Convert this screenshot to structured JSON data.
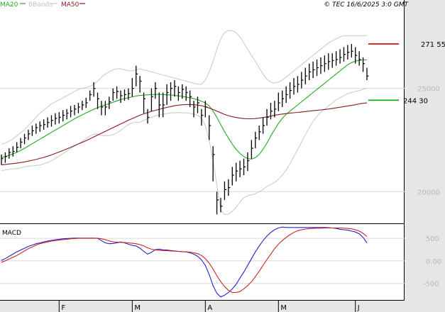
{
  "legend": {
    "ma20": {
      "label": "MA20",
      "color": "#22aa22"
    },
    "bbands": {
      "label": "BBands",
      "color": "#c8c8c8"
    },
    "ma50": {
      "label": "MA50",
      "color": "#8b1a1a"
    }
  },
  "credit": "© TEC 16/6/2025 3:0 GMT",
  "macd_label": "MACD",
  "colors": {
    "price": "#000000",
    "ma20": "#22aa22",
    "ma50": "#8b1a1a",
    "bbands": "#c8c8c8",
    "macd": "#2222cc",
    "signal": "#cc2222",
    "resistance": "#cc0000",
    "support": "#00aa00",
    "grid": "#d8d8d8",
    "axis_panel": "#e6e6e6"
  },
  "chart_data": [
    {
      "type": "ohlc",
      "panel": "price",
      "ylim": [
        18500,
        28800
      ],
      "y_ticks": [
        {
          "value": 25000,
          "label": "25000"
        },
        {
          "value": 20000,
          "label": "20000"
        }
      ],
      "x_ticks": [
        {
          "index": 15,
          "label": "F"
        },
        {
          "index": 34,
          "label": "M"
        },
        {
          "index": 53,
          "label": "A"
        },
        {
          "index": 72,
          "label": "M"
        },
        {
          "index": 92,
          "label": "J"
        }
      ],
      "levels": [
        {
          "name": "resistance",
          "value": 27155,
          "label": "271 55"
        },
        {
          "name": "support",
          "value": 24430,
          "label": "244 30"
        }
      ],
      "close": [
        21600,
        21700,
        21900,
        21950,
        22150,
        22400,
        22600,
        22800,
        22950,
        23100,
        23200,
        23250,
        23350,
        23450,
        23550,
        23600,
        23700,
        23800,
        23900,
        24000,
        24100,
        24200,
        24300,
        24700,
        25000,
        24500,
        24100,
        24100,
        24350,
        24800,
        24850,
        24650,
        24700,
        24750,
        25000,
        25700,
        25350,
        24500,
        23600,
        24600,
        25000,
        24200,
        24200,
        24800,
        25000,
        25100,
        24800,
        24950,
        24800,
        24600,
        24100,
        24300,
        23700,
        24100,
        23200,
        21800,
        19600,
        19300,
        20100,
        20200,
        20800,
        21000,
        21100,
        21200,
        21500,
        22100,
        22600,
        22900,
        23200,
        23600,
        23900,
        24000,
        24300,
        24500,
        24700,
        24900,
        25100,
        25200,
        25400,
        25600,
        25800,
        25900,
        26000,
        26100,
        26200,
        26300,
        26350,
        26400,
        26500,
        26650,
        26750,
        26800,
        26600,
        26400,
        26200,
        25600
      ],
      "high": [
        21800,
        21900,
        22100,
        22200,
        22400,
        22600,
        22800,
        23000,
        23200,
        23300,
        23400,
        23500,
        23600,
        23700,
        23800,
        23850,
        23950,
        24000,
        24150,
        24200,
        24300,
        24400,
        24550,
        24900,
        25300,
        24800,
        24400,
        24400,
        24600,
        25000,
        25100,
        24900,
        24950,
        25000,
        25500,
        26100,
        25600,
        24800,
        24000,
        25000,
        25300,
        24800,
        24800,
        25200,
        25300,
        25400,
        25100,
        25200,
        25100,
        24900,
        24400,
        24600,
        24000,
        24400,
        23700,
        22200,
        20000,
        19700,
        20500,
        20600,
        21200,
        21400,
        21500,
        21600,
        21900,
        22500,
        22900,
        23200,
        23600,
        24000,
        24300,
        24400,
        24800,
        24900,
        25100,
        25300,
        25500,
        25600,
        25800,
        26000,
        26200,
        26300,
        26400,
        26500,
        26600,
        26700,
        26700,
        26800,
        26900,
        27000,
        27100,
        27150,
        27000,
        26800,
        26500,
        26000
      ],
      "low": [
        21300,
        21400,
        21600,
        21700,
        21900,
        22100,
        22300,
        22500,
        22700,
        22800,
        22900,
        23000,
        23100,
        23150,
        23250,
        23300,
        23400,
        23500,
        23600,
        23700,
        23800,
        23950,
        24050,
        24400,
        24600,
        24000,
        23700,
        23700,
        24000,
        24400,
        24500,
        24300,
        24400,
        24450,
        24600,
        25100,
        24800,
        23800,
        23300,
        23900,
        24500,
        23600,
        23600,
        24200,
        24400,
        24600,
        24400,
        24500,
        24400,
        24100,
        23600,
        23800,
        23200,
        23600,
        22500,
        20500,
        18900,
        19000,
        19600,
        19800,
        20300,
        20500,
        20700,
        20800,
        21000,
        21600,
        22100,
        22500,
        22800,
        23200,
        23500,
        23600,
        23900,
        24100,
        24300,
        24500,
        24700,
        24800,
        25000,
        25200,
        25400,
        25500,
        25600,
        25700,
        25800,
        25900,
        26000,
        26100,
        26200,
        26300,
        26400,
        26500,
        26200,
        26100,
        25800,
        25400
      ],
      "series": [
        {
          "name": "MA20",
          "values": [
            21650,
            21700,
            21760,
            21830,
            21910,
            22000,
            22100,
            22210,
            22320,
            22430,
            22540,
            22650,
            22760,
            22870,
            22980,
            23090,
            23200,
            23310,
            23420,
            23530,
            23630,
            23720,
            23810,
            23900,
            23990,
            24070,
            24140,
            24200,
            24260,
            24330,
            24400,
            24460,
            24510,
            24550,
            24590,
            24630,
            24660,
            24680,
            24690,
            24700,
            24710,
            24710,
            24700,
            24690,
            24680,
            24660,
            24640,
            24610,
            24580,
            24550,
            24500,
            24450,
            24380,
            24300,
            24150,
            23900,
            23600,
            23250,
            22900,
            22600,
            22300,
            22050,
            21850,
            21700,
            21600,
            21580,
            21650,
            21800,
            22050,
            22350,
            22700,
            23000,
            23300,
            23550,
            23750,
            23900,
            24050,
            24200,
            24350,
            24500,
            24650,
            24800,
            24950,
            25100,
            25250,
            25400,
            25550,
            25700,
            25850,
            26000,
            26150,
            26250,
            26320,
            26360,
            26380,
            26380
          ]
        },
        {
          "name": "BBands-upper",
          "values": [
            22300,
            22350,
            22450,
            22550,
            22700,
            22850,
            23000,
            23200,
            23400,
            23600,
            23800,
            23950,
            24100,
            24250,
            24350,
            24450,
            24550,
            24650,
            24750,
            24850,
            24950,
            25000,
            25050,
            25100,
            25200,
            25350,
            25550,
            25700,
            25800,
            25900,
            25950,
            25950,
            25900,
            25850,
            25850,
            25900,
            25950,
            25900,
            25850,
            25800,
            25750,
            25700,
            25650,
            25600,
            25550,
            25500,
            25450,
            25400,
            25350,
            25300,
            25250,
            25200,
            25200,
            25400,
            25800,
            26300,
            26900,
            27400,
            27700,
            27800,
            27800,
            27700,
            27500,
            27200,
            26900,
            26600,
            26300,
            26000,
            25700,
            25450,
            25300,
            25250,
            25300,
            25400,
            25550,
            25700,
            25850,
            26000,
            26150,
            26300,
            26450,
            26600,
            26750,
            26900,
            27050,
            27200,
            27300,
            27400,
            27500,
            27550,
            27550,
            27550,
            27550,
            27550,
            27550,
            27550
          ]
        },
        {
          "name": "BBands-lower",
          "values": [
            21000,
            21050,
            21080,
            21100,
            21120,
            21150,
            21200,
            21230,
            21250,
            21270,
            21290,
            21350,
            21420,
            21490,
            21610,
            21730,
            21850,
            21970,
            22090,
            22210,
            22310,
            22440,
            22570,
            22700,
            22780,
            22790,
            22730,
            22700,
            22720,
            22760,
            22850,
            22970,
            23120,
            23250,
            23330,
            23360,
            23370,
            23460,
            23530,
            23600,
            23670,
            23720,
            23750,
            23780,
            23810,
            23820,
            23830,
            23820,
            23810,
            23800,
            23750,
            23700,
            23560,
            23200,
            22500,
            21500,
            20300,
            19100,
            18900,
            18900,
            19050,
            19250,
            19500,
            19700,
            19800,
            19850,
            19900,
            20000,
            20100,
            20250,
            20350,
            20450,
            20600,
            20800,
            21050,
            21350,
            21700,
            22050,
            22400,
            22750,
            23100,
            23400,
            23650,
            23850,
            24000,
            24150,
            24300,
            24450,
            24550,
            24650,
            24750,
            24800,
            24850,
            24900,
            24950,
            25000
          ]
        },
        {
          "name": "MA50",
          "values": [
            21300,
            21320,
            21340,
            21360,
            21380,
            21410,
            21440,
            21480,
            21520,
            21560,
            21610,
            21660,
            21720,
            21780,
            21850,
            21920,
            21990,
            22070,
            22150,
            22230,
            22310,
            22390,
            22470,
            22560,
            22650,
            22740,
            22830,
            22920,
            23010,
            23100,
            23190,
            23280,
            23370,
            23460,
            23540,
            23620,
            23700,
            23770,
            23830,
            23890,
            23940,
            23990,
            24040,
            24080,
            24120,
            24160,
            24190,
            24210,
            24220,
            24220,
            24210,
            24190,
            24160,
            24110,
            24050,
            23980,
            23900,
            23820,
            23740,
            23680,
            23630,
            23590,
            23560,
            23540,
            23530,
            23530,
            23540,
            23560,
            23590,
            23620,
            23660,
            23700,
            23730,
            23760,
            23780,
            23800,
            23820,
            23840,
            23860,
            23880,
            23900,
            23920,
            23940,
            23960,
            23980,
            24000,
            24030,
            24060,
            24090,
            24120,
            24150,
            24180,
            24210,
            24250,
            24280,
            24300
          ]
        }
      ]
    },
    {
      "type": "line",
      "panel": "macd",
      "ylim": [
        -850,
        800
      ],
      "y_ticks": [
        {
          "value": 500,
          "label": "500"
        },
        {
          "value": 0,
          "label": "0.00"
        },
        {
          "value": -500,
          "label": "-500"
        }
      ],
      "series": [
        {
          "name": "MACD",
          "values": [
            10,
            50,
            100,
            150,
            200,
            240,
            280,
            320,
            350,
            380,
            400,
            420,
            440,
            455,
            470,
            480,
            490,
            495,
            500,
            505,
            505,
            505,
            505,
            505,
            505,
            500,
            450,
            400,
            380,
            385,
            400,
            420,
            400,
            370,
            345,
            330,
            280,
            210,
            150,
            190,
            250,
            260,
            245,
            240,
            230,
            220,
            210,
            205,
            200,
            180,
            150,
            100,
            20,
            -100,
            -300,
            -550,
            -720,
            -800,
            -760,
            -700,
            -620,
            -520,
            -380,
            -250,
            -100,
            50,
            200,
            330,
            450,
            550,
            630,
            690,
            730,
            750,
            740,
            740,
            740,
            740,
            740,
            740,
            740,
            740,
            740,
            740,
            740,
            735,
            730,
            720,
            700,
            690,
            680,
            660,
            640,
            600,
            520,
            400
          ]
        },
        {
          "name": "Signal",
          "values": [
            -30,
            0,
            40,
            80,
            120,
            170,
            220,
            270,
            310,
            350,
            380,
            400,
            420,
            440,
            450,
            460,
            470,
            480,
            490,
            495,
            500,
            500,
            500,
            500,
            500,
            500,
            490,
            470,
            445,
            420,
            415,
            410,
            405,
            400,
            390,
            380,
            360,
            330,
            290,
            260,
            240,
            235,
            230,
            225,
            220,
            215,
            210,
            205,
            200,
            195,
            180,
            160,
            120,
            50,
            -50,
            -180,
            -330,
            -460,
            -570,
            -650,
            -700,
            -700,
            -680,
            -620,
            -550,
            -460,
            -350,
            -230,
            -100,
            30,
            150,
            270,
            370,
            450,
            520,
            580,
            630,
            670,
            690,
            705,
            715,
            720,
            725,
            725,
            730,
            730,
            730,
            730,
            730,
            725,
            720,
            710,
            690,
            660,
            610,
            540
          ]
        }
      ]
    }
  ]
}
